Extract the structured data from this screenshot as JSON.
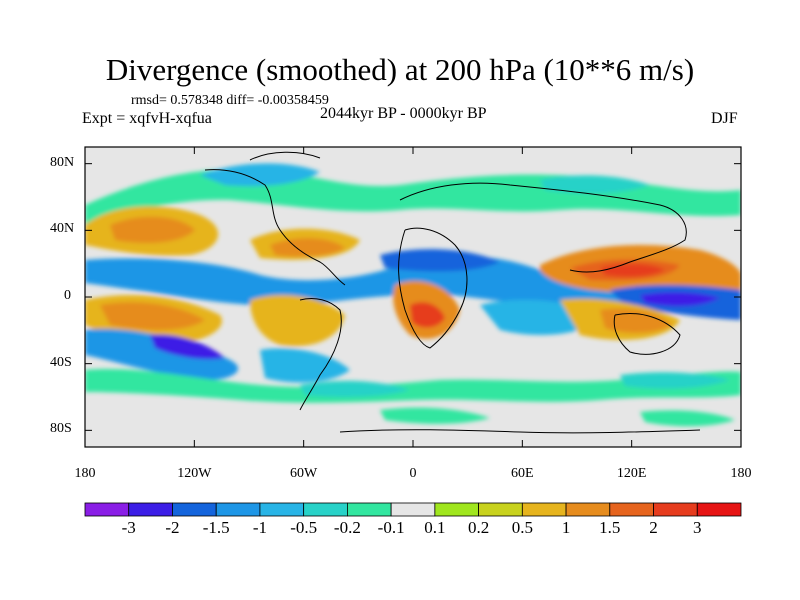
{
  "title": "Divergence (smoothed) at 200 hPa (10**6 m/s)",
  "stats": "rmsd= 0.578348 diff= -0.00358459",
  "experiment": "Expt = xqfvH-xqfua",
  "period": "2044kyr BP - 0000kyr BP",
  "season": "DJF",
  "y_axis_labels": [
    "80N",
    "40N",
    "0",
    "40S",
    "80S"
  ],
  "x_axis_labels": [
    "180",
    "120W",
    "60W",
    "0",
    "60E",
    "120E",
    "180"
  ],
  "colorbar": {
    "labels": [
      "-3",
      "-2",
      "-1.5",
      "-1",
      "-0.5",
      "-0.2",
      "-0.1",
      "0.1",
      "0.2",
      "0.5",
      "1",
      "1.5",
      "2",
      "3"
    ],
    "colors": [
      "#8a1ee6",
      "#3c1ee6",
      "#1464dc",
      "#1e96e6",
      "#28b4e6",
      "#28d2c8",
      "#32e6a0",
      "#e6e6e6",
      "#a0e61e",
      "#c8d21e",
      "#e6b41e",
      "#e68c1e",
      "#e6641e",
      "#e63c1e",
      "#e61414"
    ]
  },
  "map": {
    "domain": {
      "lon": [
        -180,
        180
      ],
      "lat": [
        -90,
        90
      ]
    },
    "background": "#e6e6e6",
    "coastline_color": "#000000"
  }
}
